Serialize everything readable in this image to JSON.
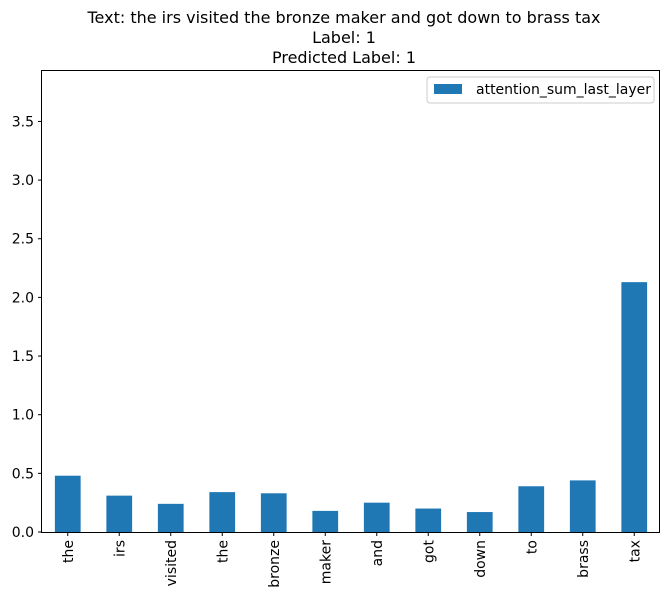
{
  "chart_data": {
    "type": "bar",
    "title_lines": [
      "Text: the irs visited the bronze maker and got down to brass tax",
      "Label: 1",
      "Predicted Label: 1"
    ],
    "categories": [
      "the",
      "irs",
      "visited",
      "the",
      "bronze",
      "maker",
      "and",
      "got",
      "down",
      "to",
      "brass",
      "tax"
    ],
    "series": [
      {
        "name": "attention_sum_last_layer",
        "color": "#1f77b4",
        "values": [
          0.48,
          0.31,
          0.24,
          0.34,
          0.33,
          0.18,
          0.25,
          0.2,
          0.17,
          0.39,
          0.44,
          2.13
        ]
      }
    ],
    "yticks": [
      "0.0",
      "0.5",
      "1.0",
      "1.5",
      "2.0",
      "2.5",
      "3.0",
      "3.5"
    ],
    "ylim": [
      0,
      3.93
    ],
    "legend_position": "upper right",
    "grid": false
  }
}
